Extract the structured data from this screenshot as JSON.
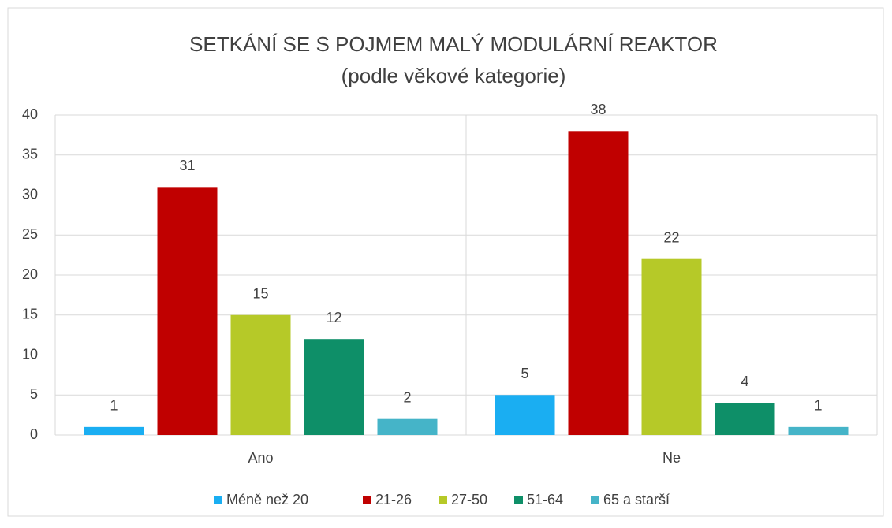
{
  "chart_data": {
    "type": "bar",
    "title": "SETKÁNÍ SE S POJMEM MALÝ MODULÁRNÍ REAKTOR",
    "subtitle": "(podle věkové kategorie)",
    "categories": [
      "Ano",
      "Ne"
    ],
    "series": [
      {
        "name": "Méně než 20",
        "color": "#1aaef2",
        "values": [
          1,
          5
        ]
      },
      {
        "name": "21-26",
        "color": "#c00000",
        "values": [
          31,
          38
        ]
      },
      {
        "name": "27-50",
        "color": "#b6c928",
        "values": [
          15,
          22
        ]
      },
      {
        "name": "51-64",
        "color": "#0e8f68",
        "values": [
          12,
          4
        ]
      },
      {
        "name": "65 a starší",
        "color": "#45b4c8",
        "values": [
          2,
          1
        ]
      }
    ],
    "ylim": [
      0,
      40
    ],
    "yticks": [
      0,
      5,
      10,
      15,
      20,
      25,
      30,
      35,
      40
    ],
    "grid": true,
    "legend": "bottom"
  }
}
